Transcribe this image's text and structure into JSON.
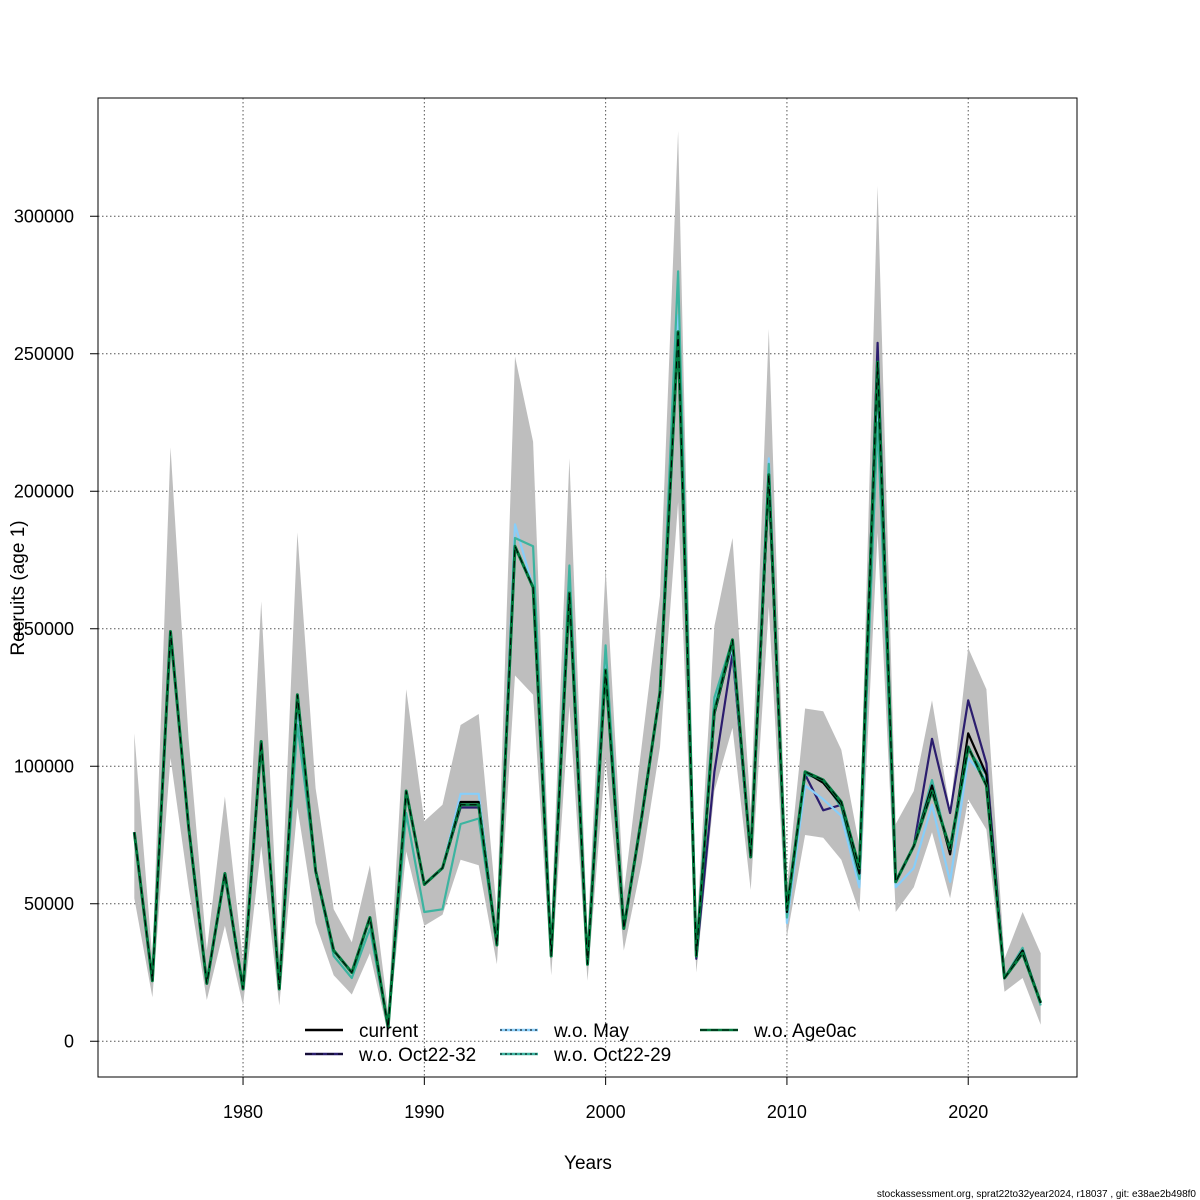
{
  "chart_data": {
    "type": "line",
    "title": "",
    "xlabel": "Years",
    "ylabel": "Recruits (age 1)",
    "xlim": [
      1972,
      2026
    ],
    "ylim": [
      -13000,
      343000
    ],
    "x_ticks": [
      1980,
      1990,
      2000,
      2010,
      2020
    ],
    "y_ticks": [
      0,
      50000,
      100000,
      150000,
      200000,
      250000,
      300000
    ],
    "grid": true,
    "legend_position": "bottom-center",
    "x": [
      1974,
      1975,
      1976,
      1977,
      1978,
      1979,
      1980,
      1981,
      1982,
      1983,
      1984,
      1985,
      1986,
      1987,
      1988,
      1989,
      1990,
      1991,
      1992,
      1993,
      1994,
      1995,
      1996,
      1997,
      1998,
      1999,
      2000,
      2001,
      2002,
      2003,
      2004,
      2005,
      2006,
      2007,
      2008,
      2009,
      2010,
      2011,
      2012,
      2013,
      2014,
      2015,
      2016,
      2017,
      2018,
      2019,
      2020,
      2021,
      2022,
      2023,
      2024
    ],
    "confidence_band": {
      "name": "current 95% CI",
      "color": "#bebebe",
      "lower": [
        52000,
        16000,
        103000,
        56000,
        15000,
        42000,
        13000,
        71000,
        13000,
        85000,
        43000,
        24000,
        17000,
        32000,
        2500,
        69000,
        42000,
        46000,
        66000,
        64000,
        28000,
        133000,
        126000,
        24000,
        122000,
        22000,
        103000,
        33000,
        65000,
        107000,
        196000,
        25000,
        91000,
        114000,
        55000,
        158000,
        38000,
        75000,
        74000,
        66000,
        47000,
        185000,
        47000,
        56000,
        76000,
        52000,
        88000,
        77000,
        18000,
        23000,
        6000
      ],
      "upper": [
        112000,
        30000,
        216000,
        110000,
        33000,
        89000,
        29000,
        160000,
        31000,
        185000,
        92000,
        48000,
        36000,
        64000,
        11000,
        128000,
        80000,
        86000,
        115000,
        119000,
        47000,
        249000,
        218000,
        42000,
        212000,
        38000,
        172000,
        54000,
        108000,
        162000,
        331000,
        39000,
        151000,
        183000,
        84000,
        259000,
        56000,
        121000,
        120000,
        106000,
        71000,
        311000,
        79000,
        91000,
        124000,
        84000,
        143000,
        128000,
        30000,
        47000,
        32000
      ]
    },
    "series": [
      {
        "name": "current",
        "color": "#000000",
        "dash": "solid",
        "values": [
          76000,
          22000,
          149000,
          78000,
          21000,
          61000,
          19000,
          109000,
          19000,
          126000,
          62000,
          33000,
          25000,
          45000,
          5000,
          91000,
          57000,
          63000,
          87000,
          87000,
          35000,
          180000,
          165000,
          31000,
          163000,
          28000,
          135000,
          41000,
          82000,
          127000,
          258000,
          31000,
          119000,
          145000,
          67000,
          203000,
          47000,
          98000,
          94000,
          86000,
          61000,
          243000,
          58000,
          71000,
          93000,
          68000,
          112000,
          97000,
          23000,
          33000,
          14000
        ]
      },
      {
        "name": "w.o. Oct22-32",
        "color": "#2b1d6e",
        "dash": "dashed",
        "values": [
          76000,
          22000,
          149000,
          78000,
          21000,
          61000,
          19000,
          109000,
          19000,
          126000,
          62000,
          33000,
          25000,
          45000,
          5000,
          91000,
          57000,
          63000,
          85000,
          85000,
          35000,
          180000,
          165000,
          31000,
          163000,
          28000,
          135000,
          41000,
          82000,
          127000,
          258000,
          30000,
          98000,
          141000,
          67000,
          203000,
          47000,
          97000,
          84000,
          86000,
          61000,
          254000,
          58000,
          71000,
          110000,
          83000,
          124000,
          101000,
          23000,
          33000,
          14000
        ]
      },
      {
        "name": "w.o. May",
        "color": "#87cefa",
        "dash": "dotted",
        "values": [
          76000,
          22000,
          149000,
          78000,
          21000,
          61000,
          19000,
          109000,
          19000,
          121000,
          62000,
          33000,
          25000,
          45000,
          5000,
          91000,
          57000,
          63000,
          90000,
          90000,
          35000,
          188000,
          165000,
          31000,
          163000,
          28000,
          140000,
          41000,
          82000,
          127000,
          264000,
          33000,
          123000,
          143000,
          67000,
          212000,
          43000,
          93000,
          88000,
          82000,
          56000,
          232000,
          56000,
          63000,
          86000,
          58000,
          103000,
          95000,
          23000,
          33000,
          14000
        ]
      },
      {
        "name": "w.o. Oct22-29",
        "color": "#3cb4a0",
        "dash": "dotted",
        "values": [
          76000,
          22000,
          149000,
          78000,
          21000,
          61000,
          19000,
          109000,
          19000,
          115000,
          62000,
          31000,
          23000,
          41000,
          5000,
          83000,
          47000,
          48000,
          79000,
          81000,
          35000,
          183000,
          180000,
          31000,
          173000,
          28000,
          144000,
          41000,
          82000,
          127000,
          280000,
          31000,
          125000,
          146000,
          67000,
          210000,
          45000,
          97000,
          95000,
          85000,
          59000,
          225000,
          58000,
          71000,
          95000,
          68000,
          106000,
          97000,
          23000,
          34000,
          13000
        ]
      },
      {
        "name": "w.o. Age0ac",
        "color": "#007a3d",
        "dash": "dashed",
        "values": [
          76000,
          22000,
          149000,
          78000,
          21000,
          61000,
          19000,
          109000,
          19000,
          126000,
          62000,
          33000,
          25000,
          45000,
          5000,
          91000,
          57000,
          63000,
          86000,
          86000,
          35000,
          180000,
          165000,
          31000,
          163000,
          28000,
          135000,
          41000,
          82000,
          127000,
          258000,
          31000,
          120000,
          146000,
          67000,
          206000,
          48000,
          98000,
          95000,
          87000,
          63000,
          247000,
          58000,
          71000,
          91000,
          70000,
          107000,
          93000,
          23000,
          32000,
          14000
        ]
      }
    ]
  },
  "footer": "stockassessment.org, sprat22to32year2024, r18037 , git: e38ae2b498f0"
}
